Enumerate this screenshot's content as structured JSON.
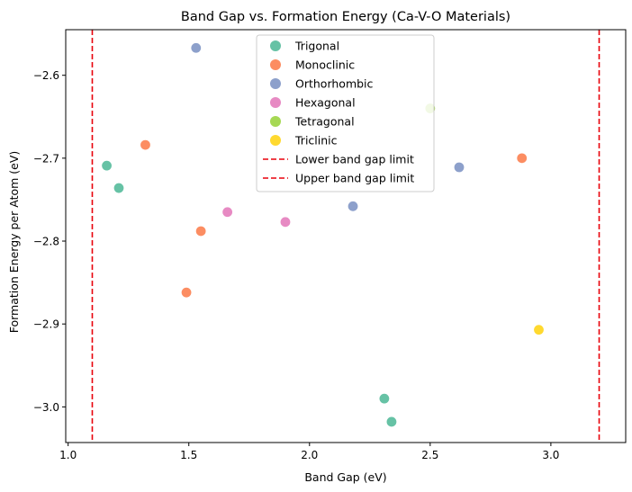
{
  "chart_data": {
    "type": "scatter",
    "title": "Band Gap vs. Formation Energy (Ca-V-O Materials)",
    "xlabel": "Band Gap (eV)",
    "ylabel": "Formation Energy per Atom (eV)",
    "xlim": [
      0.99,
      3.31
    ],
    "ylim": [
      -3.043,
      -2.545
    ],
    "xticks": [
      1.0,
      1.5,
      2.0,
      2.5,
      3.0
    ],
    "xtick_labels": [
      "1.0",
      "1.5",
      "2.0",
      "2.5",
      "3.0"
    ],
    "yticks": [
      -3.0,
      -2.9,
      -2.8,
      -2.7,
      -2.6
    ],
    "ytick_labels": [
      "−3.0",
      "−2.9",
      "−2.8",
      "−2.7",
      "−2.6"
    ],
    "grid": false,
    "legend_position": "upper center",
    "series": [
      {
        "name": "Trigonal",
        "color": "#66c2a5",
        "points": [
          [
            1.16,
            -2.709
          ],
          [
            1.21,
            -2.736
          ],
          [
            2.31,
            -2.99
          ],
          [
            2.34,
            -3.018
          ]
        ]
      },
      {
        "name": "Monoclinic",
        "color": "#fc8d62",
        "points": [
          [
            1.32,
            -2.684
          ],
          [
            1.55,
            -2.788
          ],
          [
            1.49,
            -2.862
          ],
          [
            2.88,
            -2.7
          ]
        ]
      },
      {
        "name": "Orthorhombic",
        "color": "#8da0cb",
        "points": [
          [
            1.53,
            -2.567
          ],
          [
            2.18,
            -2.758
          ],
          [
            2.62,
            -2.711
          ]
        ]
      },
      {
        "name": "Hexagonal",
        "color": "#e78ac3",
        "points": [
          [
            1.66,
            -2.765
          ],
          [
            1.9,
            -2.777
          ]
        ]
      },
      {
        "name": "Tetragonal",
        "color": "#a6d854",
        "points": [
          [
            2.5,
            -2.64
          ]
        ]
      },
      {
        "name": "Triclinic",
        "color": "#ffd92f",
        "points": [
          [
            2.95,
            -2.907
          ]
        ]
      }
    ],
    "reference_lines": [
      {
        "name": "Lower band gap limit",
        "x": 1.1,
        "color": "#e8000b",
        "style": "dashed"
      },
      {
        "name": "Upper band gap limit",
        "x": 3.2,
        "color": "#e8000b",
        "style": "dashed"
      }
    ]
  }
}
